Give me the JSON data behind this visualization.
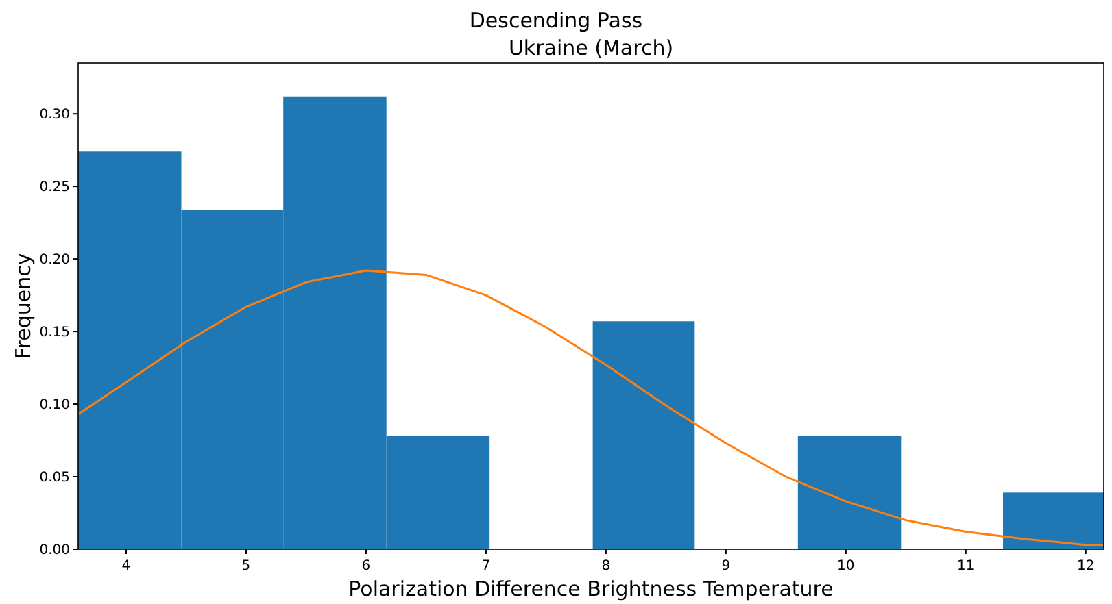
{
  "chart_data": {
    "type": "histogram",
    "title": "Descending Pass",
    "subtitle": "Ukraine (March)",
    "xlabel": "Polarization Difference Brightness Temperature",
    "ylabel": "Frequency",
    "bins": [
      3.6,
      4.46,
      5.31,
      6.17,
      7.03,
      7.89,
      8.74,
      9.6,
      10.46,
      11.31,
      12.17
    ],
    "values": [
      0.274,
      0.234,
      0.312,
      0.078,
      0,
      0.157,
      0,
      0.078,
      0,
      0.039
    ],
    "color": "#1f77b4",
    "series": [
      {
        "type": "line",
        "color": "#ff7f0e",
        "x": [
          3.6,
          4,
          4.5,
          5,
          5.5,
          6,
          6.5,
          7,
          7.5,
          8,
          8.5,
          9,
          9.5,
          10,
          10.5,
          11,
          11.5,
          12,
          12.15
        ],
        "values": [
          0.093,
          0.115,
          0.143,
          0.167,
          0.184,
          0.192,
          0.189,
          0.175,
          0.153,
          0.127,
          0.099,
          0.073,
          0.05,
          0.033,
          0.02,
          0.012,
          0.007,
          0.003,
          0.003
        ]
      }
    ],
    "xlim": [
      3.6,
      12.15
    ],
    "ylim": [
      0,
      0.335
    ],
    "xticks": [
      4,
      5,
      6,
      7,
      8,
      9,
      10,
      11,
      12
    ],
    "yticks": [
      {
        "value": 0,
        "label": "0.00"
      },
      {
        "value": 0.05,
        "label": "0.05"
      },
      {
        "value": 0.1,
        "label": "0.10"
      },
      {
        "value": 0.15,
        "label": "0.15"
      },
      {
        "value": 0.2,
        "label": "0.20"
      },
      {
        "value": 0.25,
        "label": "0.25"
      },
      {
        "value": 0.3,
        "label": "0.30"
      }
    ],
    "grid": false
  }
}
